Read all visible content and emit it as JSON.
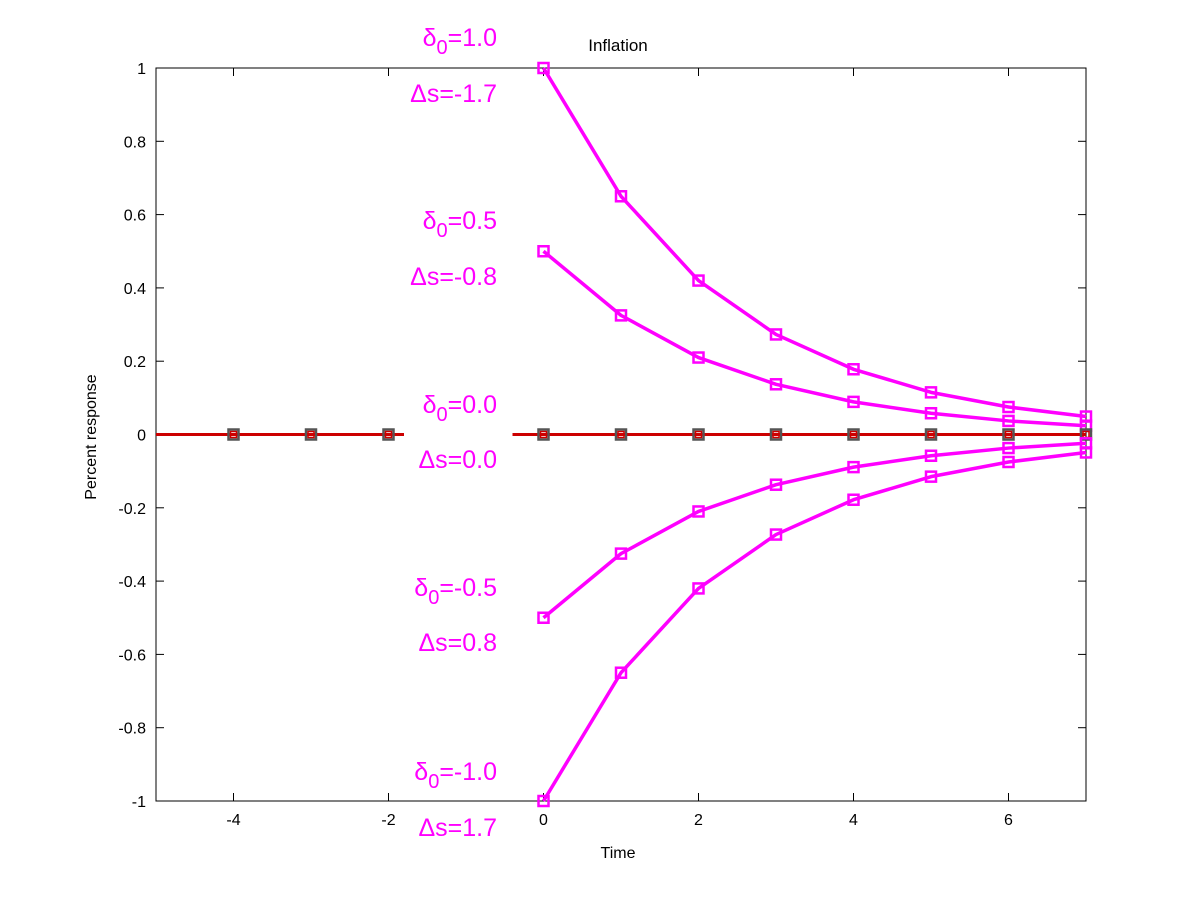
{
  "chart_data": {
    "type": "line",
    "title": "Inflation",
    "xlabel": "Time",
    "ylabel": "Percent response",
    "xlim": [
      -5,
      7
    ],
    "ylim": [
      -1,
      1
    ],
    "xticks": [
      -4,
      -2,
      0,
      2,
      4,
      6
    ],
    "xtick_labels": [
      "-4",
      "-2",
      "0",
      "2",
      "4",
      "6"
    ],
    "yticks": [
      -1,
      -0.8,
      -0.6,
      -0.4,
      -0.2,
      0,
      0.2,
      0.4,
      0.6,
      0.8,
      1
    ],
    "ytick_labels": [
      "-1",
      "-0.8",
      "-0.6",
      "-0.4",
      "-0.2",
      "0",
      "0.2",
      "0.4",
      "0.6",
      "0.8",
      "1"
    ],
    "grid": false,
    "colors": {
      "response": "#ff00ff",
      "baseline": "#cc0000",
      "baseline_marker": "#555555"
    },
    "pre_shock_x": [
      -4,
      -3,
      -2
    ],
    "x": [
      0,
      1,
      2,
      3,
      4,
      5,
      6,
      7
    ],
    "series": [
      {
        "values": [
          1.0,
          0.65,
          0.42,
          0.273,
          0.178,
          0.115,
          0.075,
          0.049
        ]
      },
      {
        "values": [
          0.5,
          0.325,
          0.21,
          0.137,
          0.089,
          0.058,
          0.037,
          0.024
        ]
      },
      {
        "values": [
          0,
          0,
          0,
          0,
          0,
          0,
          0,
          0
        ]
      },
      {
        "values": [
          -0.5,
          -0.325,
          -0.21,
          -0.137,
          -0.089,
          -0.058,
          -0.037,
          -0.024
        ]
      },
      {
        "values": [
          -1.0,
          -0.65,
          -0.42,
          -0.273,
          -0.178,
          -0.115,
          -0.075,
          -0.049
        ]
      }
    ],
    "annotations": [
      {
        "delta_sym": "δ",
        "delta_sub": "0",
        "delta_val": "=1.0",
        "ds_sym": "Δ",
        "ds_val": "s=-1.7"
      },
      {
        "delta_sym": "δ",
        "delta_sub": "0",
        "delta_val": "=0.5",
        "ds_sym": "Δ",
        "ds_val": "s=-0.8"
      },
      {
        "delta_sym": "δ",
        "delta_sub": "0",
        "delta_val": "=0.0",
        "ds_sym": "Δ",
        "ds_val": "s=0.0"
      },
      {
        "delta_sym": "δ",
        "delta_sub": "0",
        "delta_val": "=-0.5",
        "ds_sym": "Δ",
        "ds_val": "s=0.8"
      },
      {
        "delta_sym": "δ",
        "delta_sub": "0",
        "delta_val": "=-1.0",
        "ds_sym": "Δ",
        "ds_val": "s=1.7"
      }
    ]
  }
}
